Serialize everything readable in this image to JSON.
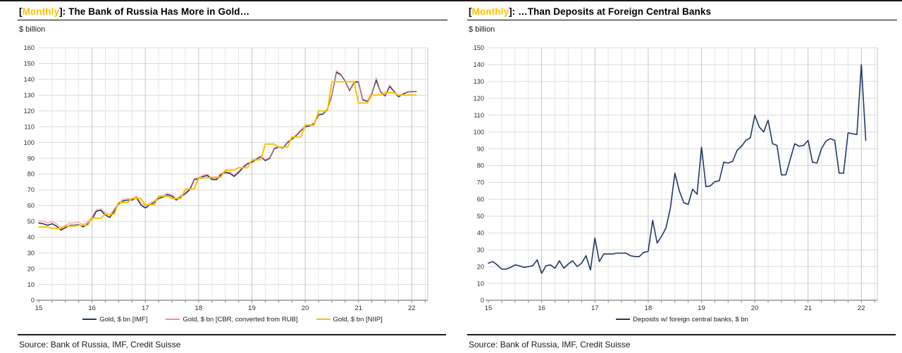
{
  "page": {
    "source_label": "Source: Bank of Russia, IMF, Credit Suisse"
  },
  "colors": {
    "accent_gold": "#FFC000",
    "navy": "#1F3864",
    "salmon": "#F4918C",
    "grid_minor": "#E4E4E4",
    "grid_major": "#C4C4C4",
    "axis": "#808080"
  },
  "left_panel": {
    "title_open": "[",
    "title_tag": "Monthly",
    "title_rest": "]: The Bank of Russia Has More in Gold…",
    "unit_label": "$ billion"
  },
  "right_panel": {
    "title_open": "[",
    "title_tag": "Monthly",
    "title_rest": "]: …Than Deposits at Foreign Central Banks",
    "unit_label": "$ billion"
  },
  "chart_data": [
    {
      "type": "line",
      "title": "[Monthly]: The Bank of Russia Has More in Gold…",
      "ylabel": "$ billion",
      "ylim": [
        0,
        160
      ],
      "ytick_step": 10,
      "x_start": "2015-01",
      "x_end": "2022-02",
      "frequency": "monthly",
      "x_tick_labels": [
        "15",
        "16",
        "17",
        "18",
        "19",
        "20",
        "21",
        "22"
      ],
      "grid": true,
      "legend_position": "bottom",
      "series": [
        {
          "name": "Gold, $ bn [IMF]",
          "color": "#1F3864",
          "width": 1.6,
          "values": [
            49,
            48.5,
            47.5,
            48.5,
            47,
            44.5,
            46,
            47.5,
            47.5,
            48,
            46.5,
            48.5,
            51.5,
            56.5,
            57,
            54,
            52.5,
            56.5,
            61,
            63,
            63.5,
            63.5,
            65,
            60.5,
            58.5,
            60.5,
            62,
            64.5,
            65.5,
            67,
            66,
            63.5,
            65.5,
            67.5,
            70,
            76.5,
            77,
            78.5,
            79,
            76.5,
            76.5,
            79.5,
            81,
            80.5,
            78.5,
            81,
            84,
            86.5,
            87.5,
            89.5,
            91,
            88.5,
            90,
            96,
            97,
            96.5,
            100,
            102,
            104.5,
            107.5,
            110,
            110.5,
            112,
            117.5,
            118,
            121,
            130,
            144.5,
            143,
            139,
            133,
            138,
            138.5,
            127,
            126,
            131,
            139.5,
            132,
            129.5,
            135.5,
            132.5,
            129,
            130.5,
            132,
            132.3,
            132.3
          ]
        },
        {
          "name": "Gold, $ bn [CBR, converted from RUB]",
          "color": "#F4918C",
          "width": 1,
          "values": [
            50.5,
            50,
            49,
            50,
            48.5,
            46,
            47.5,
            49,
            49,
            49.5,
            48,
            50,
            53,
            57.5,
            58,
            55.5,
            54,
            58,
            62,
            64,
            64.5,
            64.5,
            66,
            62,
            60,
            61.5,
            63,
            65.5,
            66.5,
            68,
            67,
            64.5,
            66.5,
            68.5,
            71,
            77,
            77.8,
            79.3,
            79.8,
            77.3,
            77.3,
            80.3,
            81.8,
            81.3,
            79.3,
            81.8,
            84.8,
            87,
            88,
            90,
            91.5,
            89,
            90.5,
            96.5,
            97.5,
            97,
            100.5,
            102.5,
            105,
            108,
            110.5,
            111,
            112.5,
            118,
            118.5,
            121.5,
            130.5,
            145.5,
            143.5,
            139.5,
            133.5,
            138.5,
            139,
            127.5,
            126.5,
            131.5,
            141,
            132.5,
            130,
            136.5,
            133,
            129.5,
            131,
            132.3,
            132.5,
            132.5
          ]
        },
        {
          "name": "Gold, $ bn [NIIP]",
          "color": "#FFC000",
          "width": 2,
          "values": [
            46.5,
            46.5,
            46.5,
            45.5,
            45.5,
            45.5,
            47,
            47,
            47,
            47.5,
            47.5,
            47.5,
            52,
            52,
            52,
            54.5,
            54.5,
            54.5,
            62,
            62,
            62,
            64.5,
            64.5,
            64.5,
            60.5,
            60.5,
            60.5,
            66,
            66,
            66,
            64.5,
            64.5,
            64.5,
            70.5,
            70.5,
            70.5,
            77.5,
            77.5,
            77.5,
            78,
            78,
            78,
            82.5,
            82.5,
            82.5,
            84,
            84,
            84,
            89,
            89,
            89,
            99,
            99,
            99,
            97,
            97,
            97,
            103.5,
            103.5,
            103.5,
            111,
            111,
            111,
            120,
            120,
            120,
            138.5,
            138.5,
            138.5,
            138.5,
            138.5,
            138.5,
            125,
            125,
            125,
            130,
            130,
            130,
            131.5,
            131.5,
            131.5,
            130,
            130,
            130,
            130,
            130
          ]
        }
      ]
    },
    {
      "type": "line",
      "title": "[Monthly]: …Than Deposits at Foreign Central Banks",
      "ylabel": "$ billion",
      "ylim": [
        0,
        150
      ],
      "ytick_step": 10,
      "x_start": "2015-01",
      "x_end": "2022-02",
      "frequency": "monthly",
      "x_tick_labels": [
        "15",
        "16",
        "17",
        "18",
        "19",
        "20",
        "21",
        "22"
      ],
      "grid": true,
      "legend_position": "bottom",
      "series": [
        {
          "name": "Deposits w/ foreign central banks, $ bn",
          "color": "#1F3864",
          "width": 1.6,
          "values": [
            22,
            23,
            21,
            18.5,
            18.5,
            19.5,
            21,
            20.5,
            19.5,
            20,
            20.5,
            24,
            16,
            20.5,
            21,
            19,
            23.5,
            19,
            21.5,
            23.5,
            20,
            22,
            26.5,
            18,
            37,
            23,
            27.5,
            27.5,
            27.5,
            28,
            28,
            28,
            26.5,
            26,
            26,
            28.5,
            29,
            47.5,
            34,
            38,
            43,
            55,
            75.5,
            65,
            58,
            57,
            66,
            63,
            91,
            67.5,
            68,
            70.5,
            71,
            82,
            81.5,
            82.5,
            89,
            91.5,
            95,
            96.5,
            110,
            103,
            100,
            107,
            93,
            92,
            74.5,
            74.5,
            84,
            93,
            91.5,
            92,
            95,
            82,
            81.5,
            90,
            94.5,
            96,
            95,
            75.5,
            75.5,
            99.5,
            99,
            98.5,
            140,
            95
          ]
        }
      ]
    }
  ]
}
